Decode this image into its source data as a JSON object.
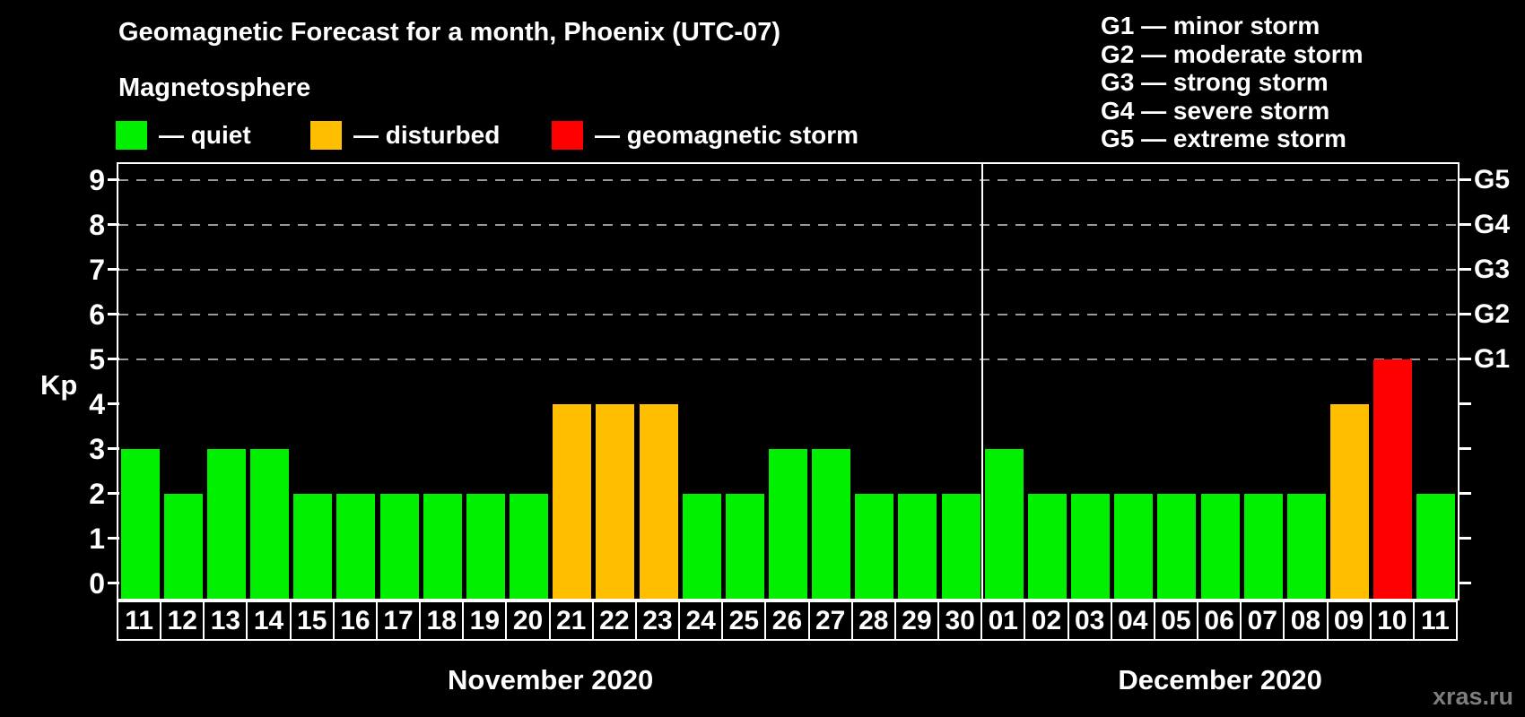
{
  "header": {
    "title": "Geomagnetic Forecast for a month, Phoenix (UTC-07)"
  },
  "magnetosphere_legend": {
    "title": "Magnetosphere",
    "items": [
      {
        "name": "quiet",
        "label": "— quiet",
        "color": "#00f000"
      },
      {
        "name": "disturbed",
        "label": "— disturbed",
        "color": "#ffbf00"
      },
      {
        "name": "storm",
        "label": "— geomagnetic storm",
        "color": "#ff0000"
      }
    ]
  },
  "g_scale_legend": {
    "items": [
      "G1 — minor storm",
      "G2 — moderate storm",
      "G3 — strong storm",
      "G4 — severe storm",
      "G5 — extreme storm"
    ]
  },
  "watermark": "xras.ru",
  "chart_data": {
    "type": "bar",
    "title": "Geomagnetic Forecast for a month, Phoenix (UTC-07)",
    "ylabel": "Kp",
    "ylim": [
      -0.35,
      9.35
    ],
    "yticks": [
      0,
      1,
      2,
      3,
      4,
      5,
      6,
      7,
      8,
      9
    ],
    "gridlines_at": [
      5,
      6,
      7,
      8,
      9
    ],
    "grid": "dashed-horizontal",
    "legend_position": "top-left and top-right",
    "right_axis": [
      {
        "kp": 5,
        "label": "G1"
      },
      {
        "kp": 6,
        "label": "G2"
      },
      {
        "kp": 7,
        "label": "G3"
      },
      {
        "kp": 8,
        "label": "G4"
      },
      {
        "kp": 9,
        "label": "G5"
      }
    ],
    "state_colors": {
      "quiet": "#00f000",
      "disturbed": "#ffbf00",
      "storm": "#ff0000"
    },
    "months": [
      {
        "label": "November 2020",
        "start_index": 0,
        "days": 20
      },
      {
        "label": "December 2020",
        "start_index": 20,
        "days": 11
      }
    ],
    "bars": [
      {
        "day": "11",
        "kp": 3,
        "state": "quiet"
      },
      {
        "day": "12",
        "kp": 2,
        "state": "quiet"
      },
      {
        "day": "13",
        "kp": 3,
        "state": "quiet"
      },
      {
        "day": "14",
        "kp": 3,
        "state": "quiet"
      },
      {
        "day": "15",
        "kp": 2,
        "state": "quiet"
      },
      {
        "day": "16",
        "kp": 2,
        "state": "quiet"
      },
      {
        "day": "17",
        "kp": 2,
        "state": "quiet"
      },
      {
        "day": "18",
        "kp": 2,
        "state": "quiet"
      },
      {
        "day": "19",
        "kp": 2,
        "state": "quiet"
      },
      {
        "day": "20",
        "kp": 2,
        "state": "quiet"
      },
      {
        "day": "21",
        "kp": 4,
        "state": "disturbed"
      },
      {
        "day": "22",
        "kp": 4,
        "state": "disturbed"
      },
      {
        "day": "23",
        "kp": 4,
        "state": "disturbed"
      },
      {
        "day": "24",
        "kp": 2,
        "state": "quiet"
      },
      {
        "day": "25",
        "kp": 2,
        "state": "quiet"
      },
      {
        "day": "26",
        "kp": 3,
        "state": "quiet"
      },
      {
        "day": "27",
        "kp": 3,
        "state": "quiet"
      },
      {
        "day": "28",
        "kp": 2,
        "state": "quiet"
      },
      {
        "day": "29",
        "kp": 2,
        "state": "quiet"
      },
      {
        "day": "30",
        "kp": 2,
        "state": "quiet"
      },
      {
        "day": "01",
        "kp": 3,
        "state": "quiet"
      },
      {
        "day": "02",
        "kp": 2,
        "state": "quiet"
      },
      {
        "day": "03",
        "kp": 2,
        "state": "quiet"
      },
      {
        "day": "04",
        "kp": 2,
        "state": "quiet"
      },
      {
        "day": "05",
        "kp": 2,
        "state": "quiet"
      },
      {
        "day": "06",
        "kp": 2,
        "state": "quiet"
      },
      {
        "day": "07",
        "kp": 2,
        "state": "quiet"
      },
      {
        "day": "08",
        "kp": 2,
        "state": "quiet"
      },
      {
        "day": "09",
        "kp": 4,
        "state": "disturbed"
      },
      {
        "day": "10",
        "kp": 5,
        "state": "storm"
      },
      {
        "day": "11",
        "kp": 2,
        "state": "quiet"
      }
    ]
  }
}
